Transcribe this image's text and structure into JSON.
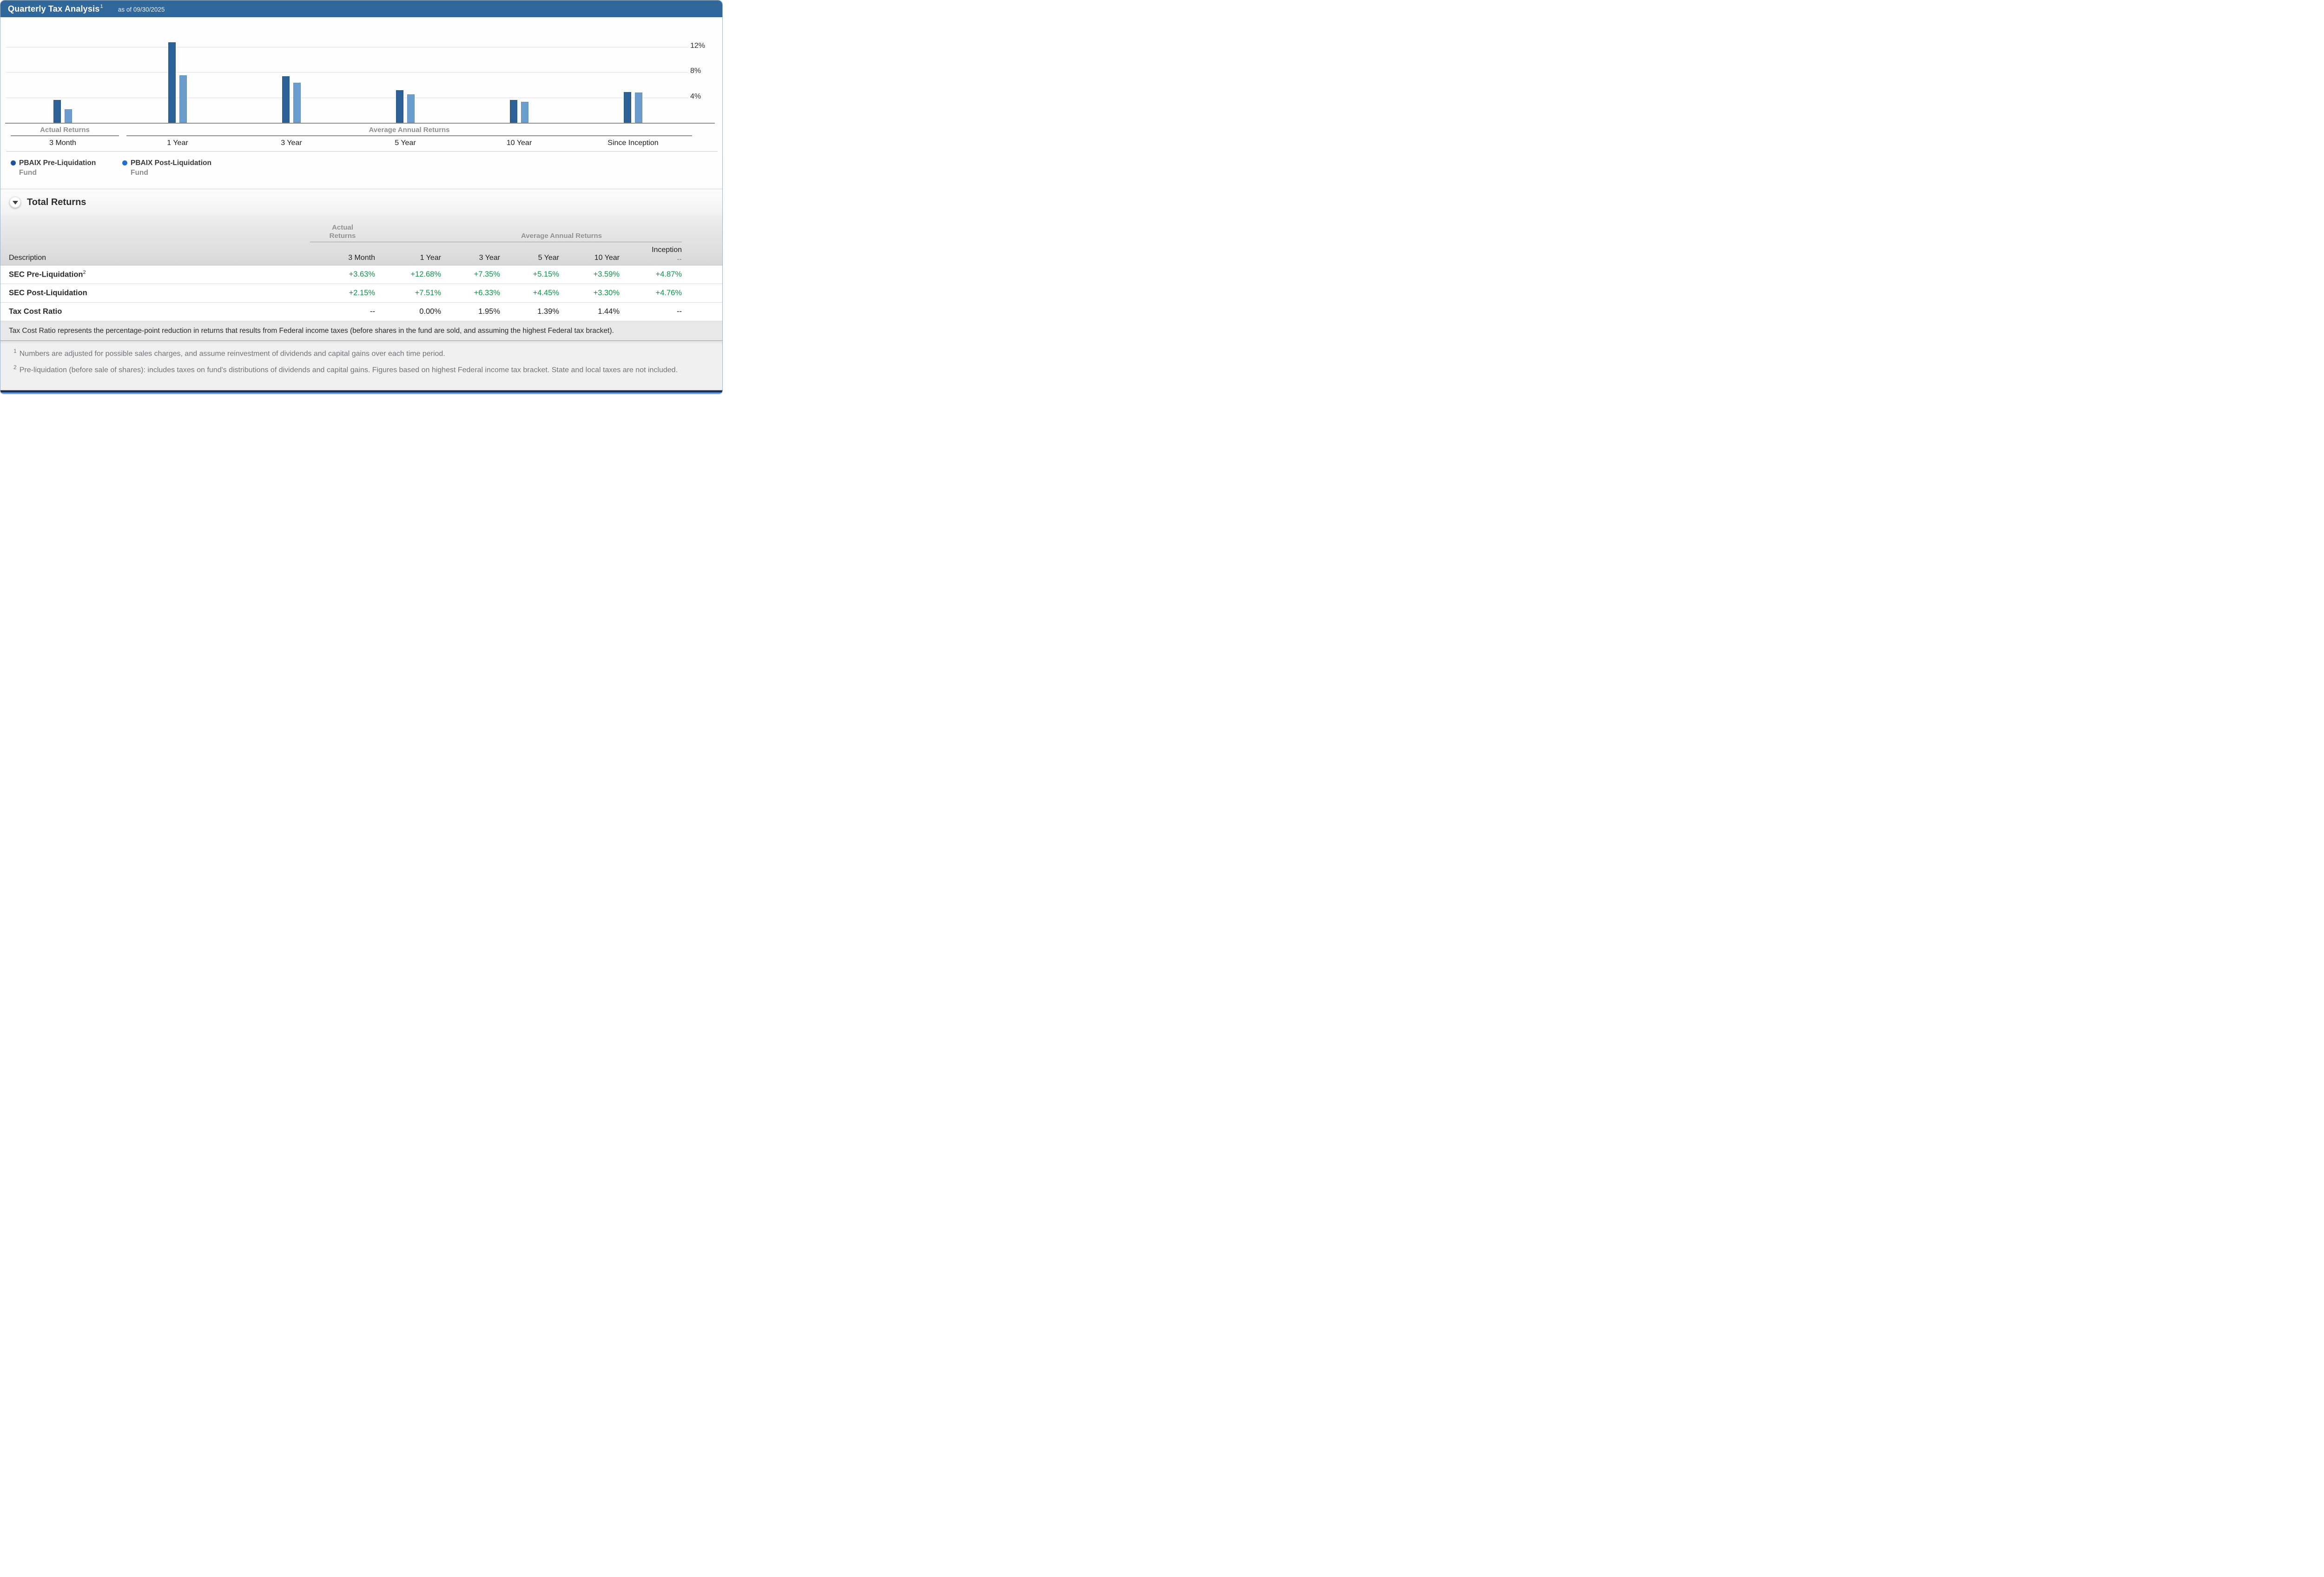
{
  "header": {
    "title": "Quarterly Tax Analysis",
    "title_superscript": "1",
    "as_of": "as of 09/30/2025"
  },
  "chart_data": {
    "type": "bar",
    "categories": [
      "3 Month",
      "1 Year",
      "3 Year",
      "5 Year",
      "10 Year",
      "Since Inception"
    ],
    "series": [
      {
        "name": "PBAIX Pre-Liquidation Fund",
        "color": "#2d6096",
        "values": [
          3.63,
          12.68,
          7.35,
          5.15,
          3.59,
          4.87
        ]
      },
      {
        "name": "PBAIX Post-Liquidation Fund",
        "color": "#6b9ecf",
        "values": [
          2.15,
          7.51,
          6.33,
          4.45,
          3.3,
          4.76
        ]
      }
    ],
    "group_labels": [
      {
        "label": "Actual Returns",
        "span": [
          0,
          0
        ]
      },
      {
        "label": "Average Annual Returns",
        "span": [
          1,
          5
        ]
      }
    ],
    "y_ticks": [
      "4%",
      "8%",
      "12%"
    ],
    "y_tick_values": [
      4,
      8,
      12
    ],
    "ylim": [
      0,
      14
    ],
    "grid": true,
    "legend_position": "bottom-left",
    "xlabel": "",
    "ylabel": ""
  },
  "legend": {
    "items": [
      {
        "label": "PBAIX Pre-Liquidation",
        "sublabel": "Fund",
        "color": "#1d53a3"
      },
      {
        "label": "PBAIX Post-Liquidation",
        "sublabel": "Fund",
        "color": "#1e72cf"
      }
    ]
  },
  "section": {
    "title": "Total Returns"
  },
  "table": {
    "group_headers": [
      {
        "label": "Actual Returns"
      },
      {
        "label": ""
      },
      {
        "label": "Average Annual Returns"
      }
    ],
    "columns": [
      "Description",
      "3 Month",
      "1 Year",
      "3 Year",
      "5 Year",
      "10 Year",
      "Inception"
    ],
    "inception_sub": "--",
    "rows": [
      {
        "label": "SEC Pre-Liquidation",
        "label_superscript": "2",
        "values": [
          "+3.63%",
          "+12.68%",
          "+7.35%",
          "+5.15%",
          "+3.59%",
          "+4.87%"
        ],
        "value_color": "green"
      },
      {
        "label": "SEC Post-Liquidation",
        "label_superscript": "",
        "values": [
          "+2.15%",
          "+7.51%",
          "+6.33%",
          "+4.45%",
          "+3.30%",
          "+4.76%"
        ],
        "value_color": "green"
      },
      {
        "label": "Tax Cost Ratio",
        "label_superscript": "",
        "values": [
          "--",
          "0.00%",
          "1.95%",
          "1.39%",
          "1.44%",
          "--"
        ],
        "value_color": "default"
      }
    ],
    "note": "Tax Cost Ratio represents the percentage-point reduction in returns that results from Federal income taxes (before shares in the fund are sold, and assuming the highest Federal tax bracket)."
  },
  "footnotes": [
    {
      "marker": "1",
      "text": "Numbers are adjusted for possible sales charges, and assume reinvestment of dividends and capital gains over each time period."
    },
    {
      "marker": "2",
      "text": "Pre-liquidation (before sale of shares): includes taxes on fund's distributions of dividends and capital gains. Figures based on highest Federal income tax bracket. State and local taxes are not included."
    }
  ],
  "colors": {
    "header_blue": "#31689c",
    "bar_dark": "#2d6096",
    "bar_light": "#6b9ecf",
    "positive_green": "#0f9348",
    "value_dark": "#1c1c1c"
  }
}
